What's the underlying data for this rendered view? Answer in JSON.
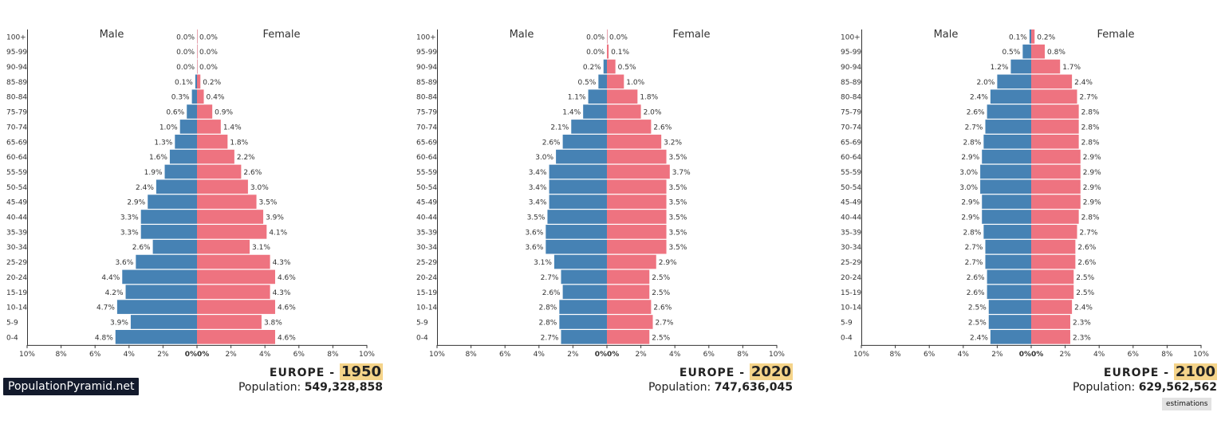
{
  "brand_label": "PopulationPyramid.net",
  "estimations_label": "estimations",
  "colors": {
    "male": "#4682b4",
    "female": "#ee7380",
    "year_highlight": "#f5d48a"
  },
  "chart_data": [
    {
      "type": "bar",
      "orientation": "population-pyramid",
      "region": "EUROPE",
      "year": "1950",
      "population_label": "Population:",
      "population": "549,328,858",
      "male_label": "Male",
      "female_label": "Female",
      "categories": [
        "100+",
        "95-99",
        "90-94",
        "85-89",
        "80-84",
        "75-79",
        "70-74",
        "65-69",
        "60-64",
        "55-59",
        "50-54",
        "45-49",
        "40-44",
        "35-39",
        "30-34",
        "25-29",
        "20-24",
        "15-19",
        "10-14",
        "5-9",
        "0-4"
      ],
      "series": [
        {
          "name": "Male",
          "values": [
            0.0,
            0.0,
            0.0,
            0.1,
            0.3,
            0.6,
            1.0,
            1.3,
            1.6,
            1.9,
            2.4,
            2.9,
            3.3,
            3.3,
            2.6,
            3.6,
            4.4,
            4.2,
            4.7,
            3.9,
            4.8
          ]
        },
        {
          "name": "Female",
          "values": [
            0.0,
            0.0,
            0.0,
            0.2,
            0.4,
            0.9,
            1.4,
            1.8,
            2.2,
            2.6,
            3.0,
            3.5,
            3.9,
            4.1,
            3.1,
            4.3,
            4.6,
            4.3,
            4.6,
            3.8,
            4.6
          ]
        }
      ],
      "xlim": [
        -10,
        10
      ],
      "xticks": [
        "10%",
        "8%",
        "6%",
        "4%",
        "2%",
        "0%",
        "0%",
        "2%",
        "4%",
        "6%",
        "8%",
        "10%"
      ]
    },
    {
      "type": "bar",
      "orientation": "population-pyramid",
      "region": "EUROPE",
      "year": "2020",
      "population_label": "Population:",
      "population": "747,636,045",
      "male_label": "Male",
      "female_label": "Female",
      "categories": [
        "100+",
        "95-99",
        "90-94",
        "85-89",
        "80-84",
        "75-79",
        "70-74",
        "65-69",
        "60-64",
        "55-59",
        "50-54",
        "45-49",
        "40-44",
        "35-39",
        "30-34",
        "25-29",
        "20-24",
        "15-19",
        "10-14",
        "5-9",
        "0-4"
      ],
      "series": [
        {
          "name": "Male",
          "values": [
            0.0,
            0.0,
            0.2,
            0.5,
            1.1,
            1.4,
            2.1,
            2.6,
            3.0,
            3.4,
            3.4,
            3.4,
            3.5,
            3.6,
            3.6,
            3.1,
            2.7,
            2.6,
            2.8,
            2.8,
            2.7
          ]
        },
        {
          "name": "Female",
          "values": [
            0.0,
            0.1,
            0.5,
            1.0,
            1.8,
            2.0,
            2.6,
            3.2,
            3.5,
            3.7,
            3.5,
            3.5,
            3.5,
            3.5,
            3.5,
            2.9,
            2.5,
            2.5,
            2.6,
            2.7,
            2.5
          ]
        }
      ],
      "xlim": [
        -10,
        10
      ],
      "xticks": [
        "10%",
        "8%",
        "6%",
        "4%",
        "2%",
        "0%",
        "0%",
        "2%",
        "4%",
        "6%",
        "8%",
        "10%"
      ]
    },
    {
      "type": "bar",
      "orientation": "population-pyramid",
      "region": "EUROPE",
      "year": "2100",
      "population_label": "Population:",
      "population": "629,562,562",
      "male_label": "Male",
      "female_label": "Female",
      "categories": [
        "100+",
        "95-99",
        "90-94",
        "85-89",
        "80-84",
        "75-79",
        "70-74",
        "65-69",
        "60-64",
        "55-59",
        "50-54",
        "45-49",
        "40-44",
        "35-39",
        "30-34",
        "25-29",
        "20-24",
        "15-19",
        "10-14",
        "5-9",
        "0-4"
      ],
      "series": [
        {
          "name": "Male",
          "values": [
            0.1,
            0.5,
            1.2,
            2.0,
            2.4,
            2.6,
            2.7,
            2.8,
            2.9,
            3.0,
            3.0,
            2.9,
            2.9,
            2.8,
            2.7,
            2.7,
            2.6,
            2.6,
            2.5,
            2.5,
            2.4
          ]
        },
        {
          "name": "Female",
          "values": [
            0.2,
            0.8,
            1.7,
            2.4,
            2.7,
            2.8,
            2.8,
            2.8,
            2.9,
            2.9,
            2.9,
            2.9,
            2.8,
            2.7,
            2.6,
            2.6,
            2.5,
            2.5,
            2.4,
            2.3,
            2.3
          ]
        }
      ],
      "xlim": [
        -10,
        10
      ],
      "xticks": [
        "10%",
        "8%",
        "6%",
        "4%",
        "2%",
        "0%",
        "0%",
        "2%",
        "4%",
        "6%",
        "8%",
        "10%"
      ]
    }
  ]
}
